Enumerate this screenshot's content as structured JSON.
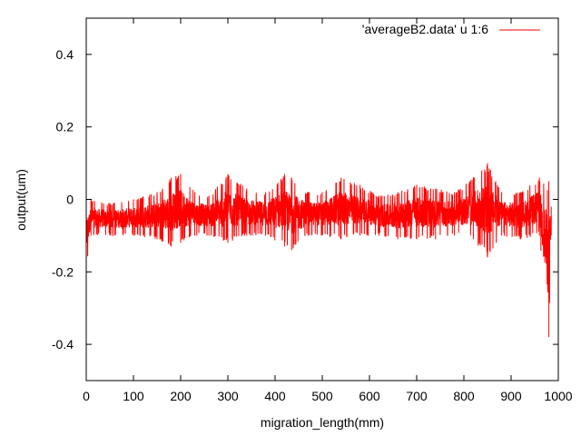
{
  "chart_data": {
    "type": "line",
    "title": "",
    "xlabel": "migration_length(mm)",
    "ylabel": "output(um)",
    "xlim": [
      0,
      1000
    ],
    "ylim": [
      -0.5,
      0.5
    ],
    "x_ticks": [
      0,
      100,
      200,
      300,
      400,
      500,
      600,
      700,
      800,
      900,
      1000
    ],
    "y_ticks": [
      -0.4,
      -0.2,
      0,
      0.2,
      0.4
    ],
    "x_tick_labels": [
      "0",
      "100",
      "200",
      "300",
      "400",
      "500",
      "600",
      "700",
      "800",
      "900",
      "1000"
    ],
    "y_tick_labels": [
      "-0.4",
      "-0.2",
      "0",
      "0.2",
      "0.4"
    ],
    "grid": false,
    "legend_position": "top-right",
    "series": [
      {
        "name": "'averageB2.data' u 1:6",
        "color": "#ff0000",
        "x_range": [
          0,
          985
        ],
        "baseline": -0.045,
        "envelope": [
          {
            "x": 0,
            "min": -0.19,
            "max": -0.01
          },
          {
            "x": 10,
            "min": -0.1,
            "max": 0.0
          },
          {
            "x": 50,
            "min": -0.1,
            "max": -0.01
          },
          {
            "x": 100,
            "min": -0.1,
            "max": 0.0
          },
          {
            "x": 150,
            "min": -0.11,
            "max": 0.02
          },
          {
            "x": 180,
            "min": -0.13,
            "max": 0.06
          },
          {
            "x": 200,
            "min": -0.12,
            "max": 0.07
          },
          {
            "x": 230,
            "min": -0.1,
            "max": 0.02
          },
          {
            "x": 260,
            "min": -0.1,
            "max": 0.01
          },
          {
            "x": 300,
            "min": -0.12,
            "max": 0.07
          },
          {
            "x": 340,
            "min": -0.1,
            "max": 0.03
          },
          {
            "x": 380,
            "min": -0.1,
            "max": 0.02
          },
          {
            "x": 420,
            "min": -0.13,
            "max": 0.07
          },
          {
            "x": 435,
            "min": -0.14,
            "max": 0.06
          },
          {
            "x": 470,
            "min": -0.1,
            "max": 0.02
          },
          {
            "x": 500,
            "min": -0.1,
            "max": 0.02
          },
          {
            "x": 540,
            "min": -0.11,
            "max": 0.06
          },
          {
            "x": 580,
            "min": -0.1,
            "max": 0.04
          },
          {
            "x": 620,
            "min": -0.1,
            "max": 0.01
          },
          {
            "x": 660,
            "min": -0.11,
            "max": 0.02
          },
          {
            "x": 700,
            "min": -0.11,
            "max": 0.04
          },
          {
            "x": 740,
            "min": -0.11,
            "max": 0.03
          },
          {
            "x": 780,
            "min": -0.1,
            "max": 0.02
          },
          {
            "x": 820,
            "min": -0.11,
            "max": 0.06
          },
          {
            "x": 850,
            "min": -0.16,
            "max": 0.1
          },
          {
            "x": 880,
            "min": -0.1,
            "max": 0.02
          },
          {
            "x": 920,
            "min": -0.11,
            "max": 0.02
          },
          {
            "x": 960,
            "min": -0.1,
            "max": 0.06
          },
          {
            "x": 980,
            "min": -0.38,
            "max": 0.05
          },
          {
            "x": 985,
            "min": -0.1,
            "max": -0.02
          }
        ]
      }
    ]
  }
}
